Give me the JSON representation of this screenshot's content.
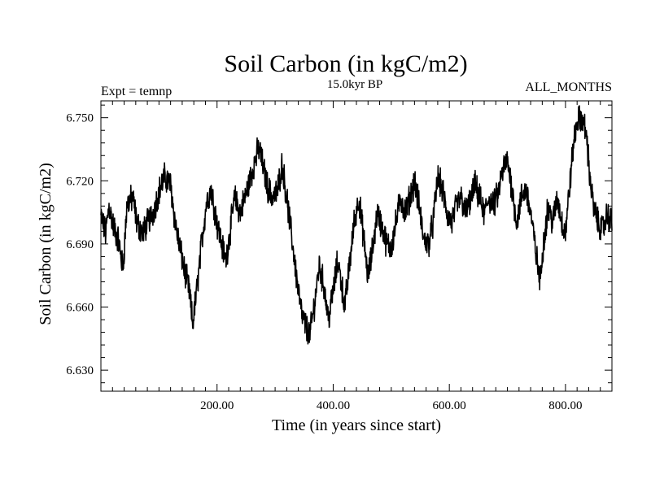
{
  "chart_data": {
    "type": "line",
    "title": "Soil Carbon (in kgC/m2)",
    "subtitle": "15.0kyr BP",
    "annotation_left": "Expt = temnp",
    "annotation_right": "ALL_MONTHS",
    "xlabel": "Time (in years since start)",
    "ylabel": "Soil Carbon (in kgC/m2)",
    "xlim": [
      0,
      880
    ],
    "ylim": [
      6.62,
      6.758
    ],
    "xticks": [
      200,
      400,
      600,
      800
    ],
    "xtick_labels": [
      "200.00",
      "400.00",
      "600.00",
      "800.00"
    ],
    "yticks": [
      6.63,
      6.66,
      6.69,
      6.72,
      6.75
    ],
    "ytick_labels": [
      "6.630",
      "6.660",
      "6.690",
      "6.720",
      "6.750"
    ],
    "series": [
      {
        "name": "Soil Carbon",
        "color": "#000000",
        "anchors": [
          [
            0,
            6.703
          ],
          [
            8,
            6.695
          ],
          [
            14,
            6.708
          ],
          [
            22,
            6.698
          ],
          [
            30,
            6.692
          ],
          [
            38,
            6.678
          ],
          [
            45,
            6.709
          ],
          [
            55,
            6.712
          ],
          [
            62,
            6.7
          ],
          [
            72,
            6.695
          ],
          [
            80,
            6.7
          ],
          [
            90,
            6.705
          ],
          [
            100,
            6.715
          ],
          [
            110,
            6.722
          ],
          [
            120,
            6.718
          ],
          [
            128,
            6.7
          ],
          [
            136,
            6.688
          ],
          [
            145,
            6.676
          ],
          [
            152,
            6.668
          ],
          [
            158,
            6.652
          ],
          [
            166,
            6.67
          ],
          [
            174,
            6.692
          ],
          [
            182,
            6.71
          ],
          [
            190,
            6.716
          ],
          [
            200,
            6.7
          ],
          [
            208,
            6.69
          ],
          [
            215,
            6.682
          ],
          [
            222,
            6.695
          ],
          [
            230,
            6.712
          ],
          [
            240,
            6.705
          ],
          [
            248,
            6.712
          ],
          [
            256,
            6.72
          ],
          [
            264,
            6.728
          ],
          [
            272,
            6.736
          ],
          [
            280,
            6.726
          ],
          [
            288,
            6.716
          ],
          [
            296,
            6.712
          ],
          [
            304,
            6.715
          ],
          [
            312,
            6.728
          ],
          [
            320,
            6.712
          ],
          [
            330,
            6.69
          ],
          [
            338,
            6.672
          ],
          [
            346,
            6.656
          ],
          [
            354,
            6.65
          ],
          [
            360,
            6.647
          ],
          [
            368,
            6.662
          ],
          [
            376,
            6.68
          ],
          [
            384,
            6.67
          ],
          [
            392,
            6.654
          ],
          [
            400,
            6.668
          ],
          [
            408,
            6.682
          ],
          [
            414,
            6.672
          ],
          [
            420,
            6.66
          ],
          [
            428,
            6.68
          ],
          [
            436,
            6.7
          ],
          [
            444,
            6.712
          ],
          [
            452,
            6.694
          ],
          [
            460,
            6.674
          ],
          [
            468,
            6.688
          ],
          [
            476,
            6.705
          ],
          [
            484,
            6.698
          ],
          [
            492,
            6.69
          ],
          [
            500,
            6.688
          ],
          [
            508,
            6.7
          ],
          [
            516,
            6.712
          ],
          [
            524,
            6.705
          ],
          [
            532,
            6.712
          ],
          [
            540,
            6.72
          ],
          [
            548,
            6.708
          ],
          [
            556,
            6.692
          ],
          [
            564,
            6.69
          ],
          [
            572,
            6.7
          ],
          [
            580,
            6.722
          ],
          [
            588,
            6.716
          ],
          [
            596,
            6.704
          ],
          [
            604,
            6.7
          ],
          [
            612,
            6.708
          ],
          [
            620,
            6.712
          ],
          [
            628,
            6.705
          ],
          [
            636,
            6.71
          ],
          [
            644,
            6.718
          ],
          [
            652,
            6.712
          ],
          [
            660,
            6.704
          ],
          [
            668,
            6.712
          ],
          [
            676,
            6.708
          ],
          [
            684,
            6.714
          ],
          [
            692,
            6.725
          ],
          [
            700,
            6.73
          ],
          [
            708,
            6.716
          ],
          [
            716,
            6.7
          ],
          [
            724,
            6.712
          ],
          [
            732,
            6.716
          ],
          [
            740,
            6.705
          ],
          [
            748,
            6.688
          ],
          [
            756,
            6.672
          ],
          [
            762,
            6.69
          ],
          [
            770,
            6.708
          ],
          [
            778,
            6.7
          ],
          [
            786,
            6.712
          ],
          [
            794,
            6.7
          ],
          [
            800,
            6.695
          ],
          [
            808,
            6.72
          ],
          [
            814,
            6.738
          ],
          [
            820,
            6.748
          ],
          [
            828,
            6.75
          ],
          [
            836,
            6.742
          ],
          [
            842,
            6.722
          ],
          [
            848,
            6.708
          ],
          [
            856,
            6.7
          ],
          [
            864,
            6.697
          ],
          [
            872,
            6.704
          ],
          [
            880,
            6.7
          ]
        ]
      }
    ]
  }
}
